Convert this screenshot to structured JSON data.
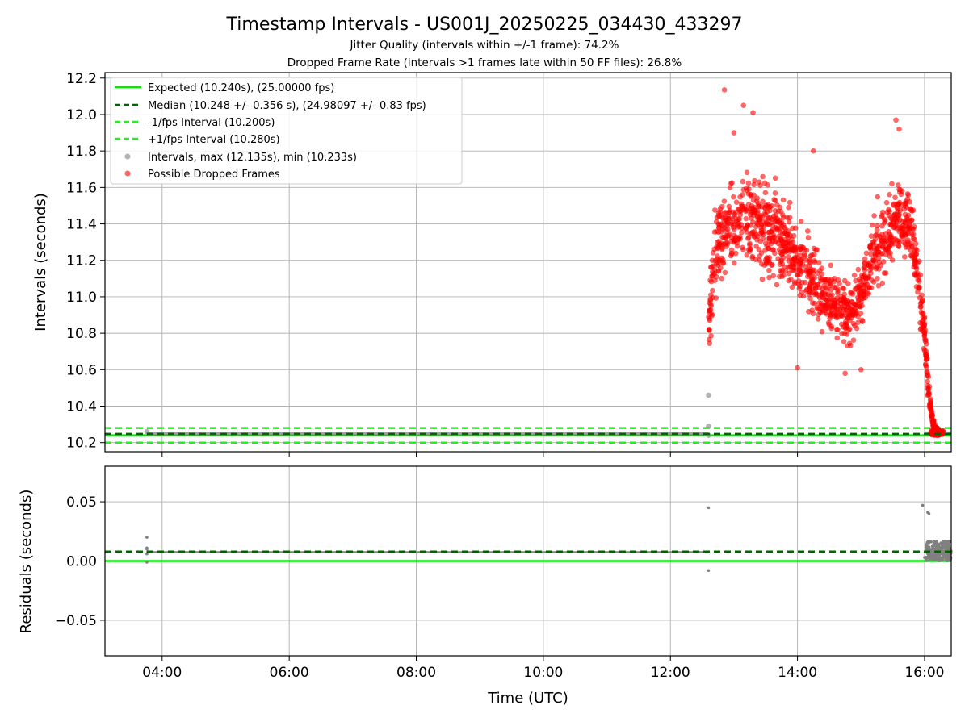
{
  "chart_data": {
    "type": "scatter",
    "title": "Timestamp Intervals - US001J_20250225_034430_433297",
    "subtitles": [
      "Jitter Quality (intervals within +/-1 frame): 74.2%",
      "Dropped Frame Rate (intervals >1 frames late within 50 FF files): 26.8%"
    ],
    "colors": {
      "expected": "#00ee00",
      "median": "#006400",
      "fps_bounds": "#22ee22",
      "intervals": "#808080",
      "dropped": "#ff0000",
      "grid": "#b0b0b0"
    },
    "x_axis": {
      "label": "Time (UTC)",
      "unit": "hours UTC",
      "range": [
        3.1,
        16.42
      ],
      "ticks": [
        4,
        6,
        8,
        10,
        12,
        14,
        16
      ],
      "tick_labels": [
        "04:00",
        "06:00",
        "08:00",
        "10:00",
        "12:00",
        "14:00",
        "16:00"
      ]
    },
    "top_panel": {
      "ylabel": "Intervals (seconds)",
      "ylim": [
        10.15,
        12.23
      ],
      "yticks": [
        10.2,
        10.4,
        10.6,
        10.8,
        11.0,
        11.2,
        11.4,
        11.6,
        11.8,
        12.0,
        12.2
      ],
      "ytick_labels": [
        "10.2",
        "10.4",
        "10.6",
        "10.8",
        "11.0",
        "11.2",
        "11.4",
        "11.6",
        "11.8",
        "12.0",
        "12.2"
      ],
      "legend_position": "upper left",
      "legend": [
        {
          "key": "expected",
          "label": "Expected (10.240s), (25.00000 fps)",
          "style": "solid"
        },
        {
          "key": "median",
          "label": "Median (10.248 +/- 0.356 s), (24.98097 +/- 0.83 fps)",
          "style": "dashed"
        },
        {
          "key": "minus_fps",
          "label": "-1/fps Interval (10.200s)",
          "style": "dashed"
        },
        {
          "key": "plus_fps",
          "label": "+1/fps Interval (10.280s)",
          "style": "dashed"
        },
        {
          "key": "intervals",
          "label": "Intervals, max (12.135s), min (10.233s)",
          "style": "marker"
        },
        {
          "key": "dropped",
          "label": "Possible Dropped Frames",
          "style": "marker"
        }
      ],
      "reference_lines": {
        "expected": 10.24,
        "median": 10.248,
        "minus_fps": 10.2,
        "plus_fps": 10.28
      },
      "normal_interval_segments": [
        {
          "x_start": 3.75,
          "x_end": 12.6,
          "y": 10.248
        },
        {
          "x_start": 16.0,
          "x_end": 16.42,
          "y": 10.25
        }
      ],
      "grey_outliers": [
        {
          "x": 12.6,
          "y": 10.46
        },
        {
          "x": 12.6,
          "y": 10.29
        },
        {
          "x": 12.6,
          "y": 10.24
        },
        {
          "x": 3.76,
          "y": 10.26
        }
      ],
      "dropped_frames_envelope": [
        {
          "x": 12.6,
          "mid": 10.85,
          "spread": 0.25
        },
        {
          "x": 12.7,
          "mid": 11.2,
          "spread": 0.4
        },
        {
          "x": 12.8,
          "mid": 11.35,
          "spread": 0.4
        },
        {
          "x": 13.0,
          "mid": 11.4,
          "spread": 0.4
        },
        {
          "x": 13.2,
          "mid": 11.4,
          "spread": 0.4
        },
        {
          "x": 13.4,
          "mid": 11.4,
          "spread": 0.4
        },
        {
          "x": 13.6,
          "mid": 11.35,
          "spread": 0.4
        },
        {
          "x": 13.8,
          "mid": 11.3,
          "spread": 0.35
        },
        {
          "x": 14.0,
          "mid": 11.2,
          "spread": 0.35
        },
        {
          "x": 14.2,
          "mid": 11.1,
          "spread": 0.35
        },
        {
          "x": 14.4,
          "mid": 11.0,
          "spread": 0.3
        },
        {
          "x": 14.6,
          "mid": 10.95,
          "spread": 0.3
        },
        {
          "x": 14.8,
          "mid": 10.9,
          "spread": 0.3
        },
        {
          "x": 15.0,
          "mid": 11.0,
          "spread": 0.3
        },
        {
          "x": 15.2,
          "mid": 11.25,
          "spread": 0.35
        },
        {
          "x": 15.4,
          "mid": 11.35,
          "spread": 0.35
        },
        {
          "x": 15.6,
          "mid": 11.45,
          "spread": 0.35
        },
        {
          "x": 15.8,
          "mid": 11.4,
          "spread": 0.35
        },
        {
          "x": 15.9,
          "mid": 11.1,
          "spread": 0.3
        },
        {
          "x": 16.0,
          "mid": 10.8,
          "spread": 0.2
        },
        {
          "x": 16.05,
          "mid": 10.55,
          "spread": 0.15
        },
        {
          "x": 16.1,
          "mid": 10.38,
          "spread": 0.1
        },
        {
          "x": 16.15,
          "mid": 10.28,
          "spread": 0.04
        },
        {
          "x": 16.25,
          "mid": 10.25,
          "spread": 0.02
        }
      ],
      "dropped_frames_extremes": [
        {
          "x": 12.85,
          "y": 12.135
        },
        {
          "x": 13.15,
          "y": 12.05
        },
        {
          "x": 13.3,
          "y": 12.01
        },
        {
          "x": 13.0,
          "y": 11.9
        },
        {
          "x": 15.55,
          "y": 11.97
        },
        {
          "x": 15.6,
          "y": 11.92
        },
        {
          "x": 14.25,
          "y": 11.8
        },
        {
          "x": 14.0,
          "y": 10.61
        },
        {
          "x": 14.75,
          "y": 10.58
        },
        {
          "x": 15.0,
          "y": 10.6
        }
      ]
    },
    "bottom_panel": {
      "ylabel": "Residuals (seconds)",
      "ylim": [
        -0.08,
        0.08
      ],
      "yticks": [
        -0.05,
        0.0,
        0.05
      ],
      "ytick_labels": [
        "−0.05",
        "0.00",
        "0.05"
      ],
      "reference_lines": {
        "expected": 0.0,
        "median": 0.008
      },
      "residual_segments": [
        {
          "x_start": 3.75,
          "x_end": 12.6,
          "y": 0.0075
        }
      ],
      "residual_points": [
        {
          "x": 3.76,
          "y": 0.02
        },
        {
          "x": 3.76,
          "y": 0.011
        },
        {
          "x": 3.76,
          "y": 0.01
        },
        {
          "x": 3.76,
          "y": 0.006
        },
        {
          "x": 3.76,
          "y": -0.001
        },
        {
          "x": 12.6,
          "y": 0.045
        },
        {
          "x": 12.6,
          "y": -0.008
        },
        {
          "x": 15.97,
          "y": 0.047
        },
        {
          "x": 16.05,
          "y": 0.041
        },
        {
          "x": 16.07,
          "y": 0.04
        },
        {
          "x": 16.0,
          "y": 0.003
        }
      ],
      "residual_cluster": {
        "x_start": 16.02,
        "x_end": 16.42,
        "y_min": 0.0,
        "y_max": 0.017
      }
    }
  }
}
